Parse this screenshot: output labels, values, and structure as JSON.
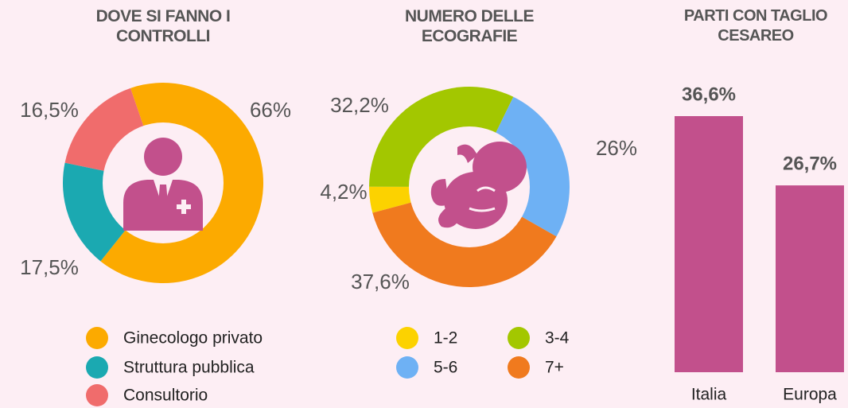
{
  "chart_data": [
    {
      "type": "donut",
      "title": "DOVE SI FANNO I CONTROLLI",
      "categories": [
        "Ginecologo privato",
        "Struttura pubblica",
        "Consultorio"
      ],
      "values": [
        66,
        17.5,
        16.5
      ],
      "value_labels": [
        "66%",
        "17,5%",
        "16,5%"
      ],
      "colors": [
        "#fcaa00",
        "#1ba9b1",
        "#f06c6c"
      ]
    },
    {
      "type": "donut",
      "title": "NUMERO DELLE ECOGRAFIE",
      "categories": [
        "1-2",
        "3-4",
        "5-6",
        "7+"
      ],
      "values": [
        4.2,
        32.2,
        26,
        37.6
      ],
      "value_labels": [
        "4,2%",
        "32,2%",
        "26%",
        "37,6%"
      ],
      "colors": [
        "#fcd200",
        "#a3c700",
        "#6eb1f4",
        "#f07a1e"
      ]
    },
    {
      "type": "bar",
      "title": "PARTI CON TAGLIO CESAREO",
      "categories": [
        "Italia",
        "Europa"
      ],
      "values": [
        36.6,
        26.7
      ],
      "value_labels": [
        "36,6%",
        "26,7%"
      ],
      "color": "#c2508c"
    }
  ]
}
